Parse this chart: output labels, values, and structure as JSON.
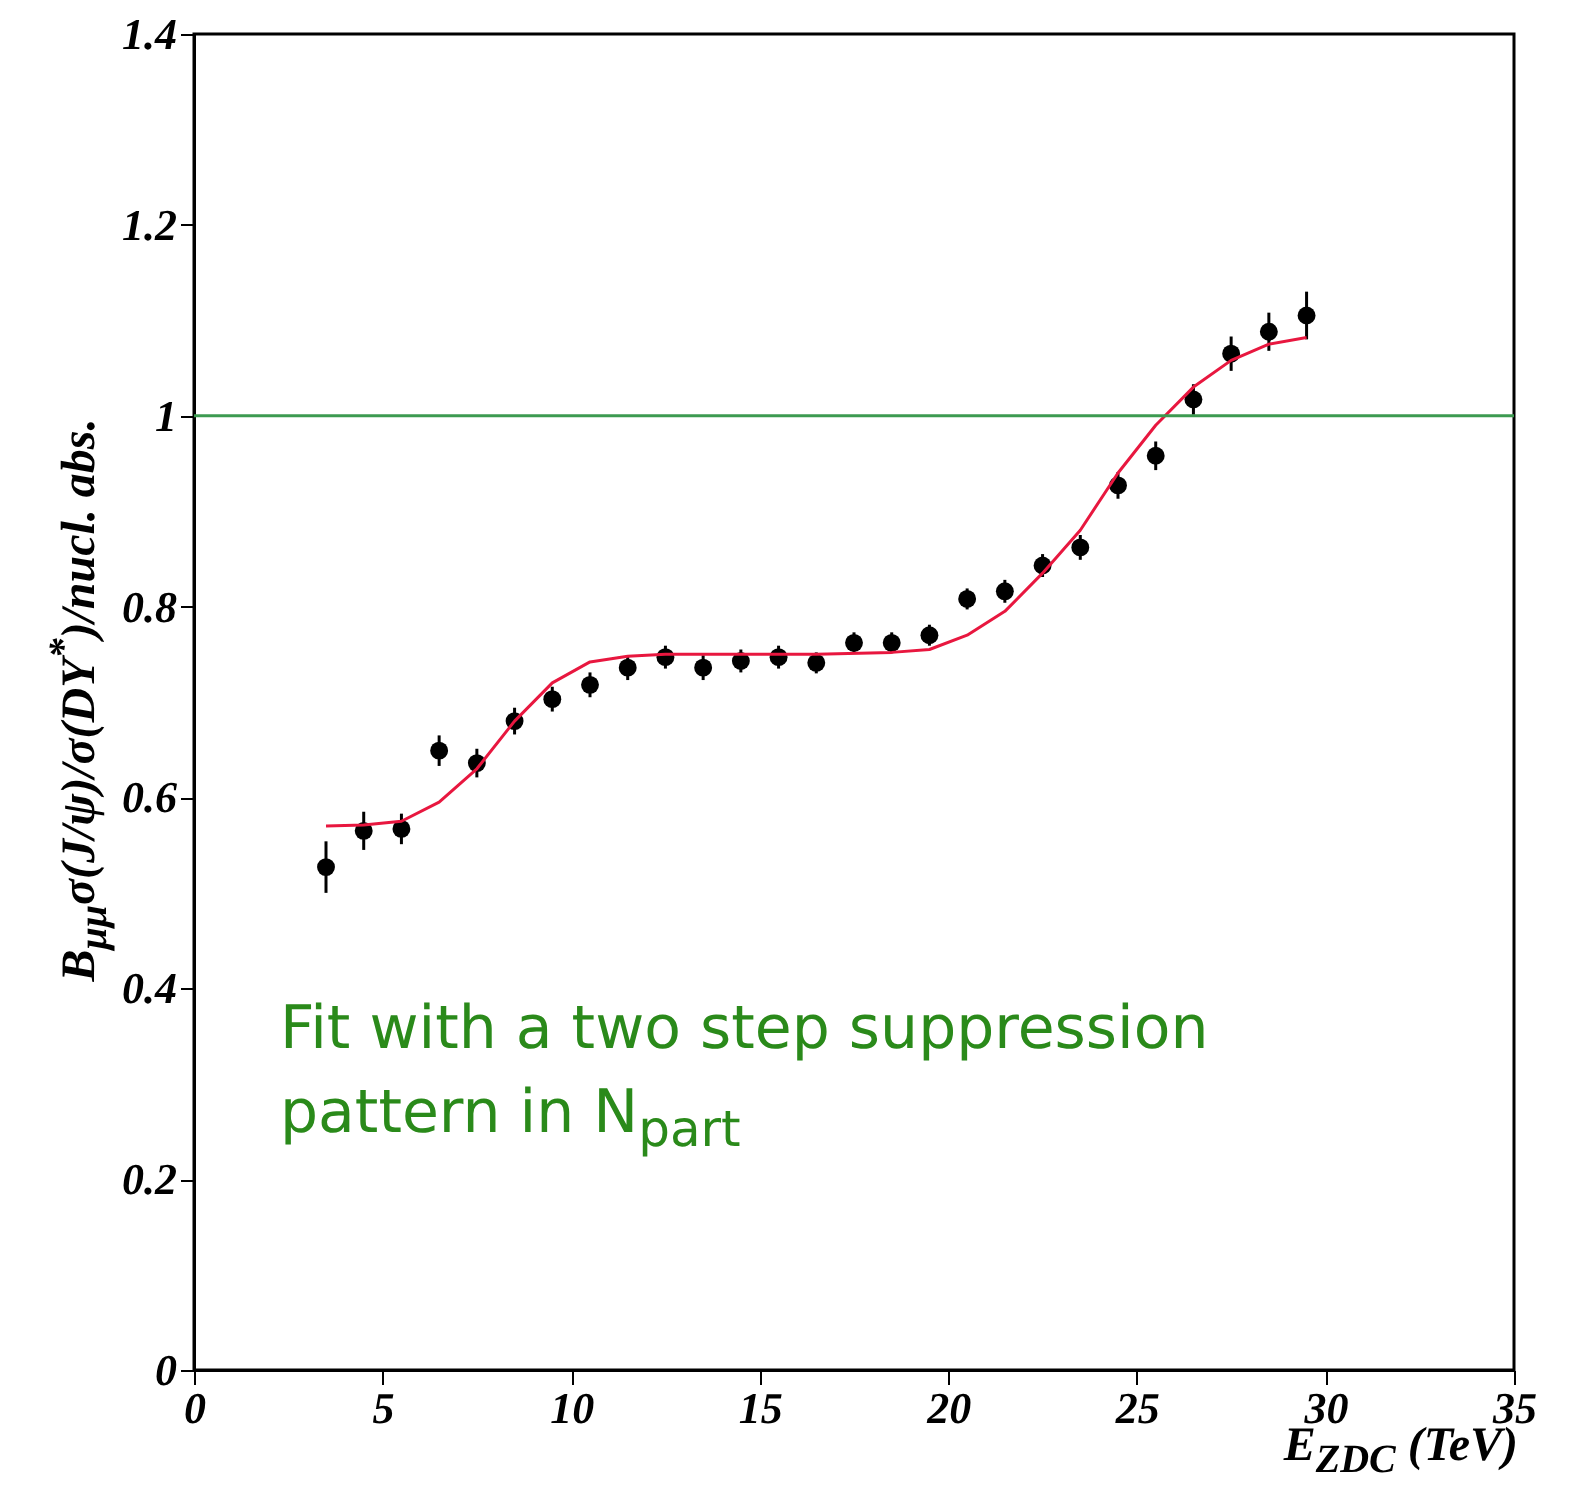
{
  "chart_data": {
    "type": "scatter",
    "xlabel": "E$_{ZDC}$ (TeV)",
    "ylabel": "B$_{μμ}$σ(J/ψ)/σ(DY$^{*}$)/nucl. abs.",
    "xlim": [
      0,
      35
    ],
    "ylim": [
      0,
      1.4
    ],
    "xticks": [
      0,
      5,
      10,
      15,
      20,
      25,
      30,
      35
    ],
    "yticks": [
      0,
      0.2,
      0.4,
      0.6,
      0.8,
      1,
      1.2,
      1.4
    ],
    "grid": false,
    "series": [
      {
        "type": "scatter",
        "marker": "circle",
        "color": "#000000",
        "x": [
          3.5,
          4.5,
          5.5,
          6.5,
          7.5,
          8.5,
          9.5,
          10.5,
          11.5,
          12.5,
          13.5,
          14.5,
          15.5,
          16.5,
          17.5,
          18.5,
          19.5,
          20.5,
          21.5,
          22.5,
          23.5,
          24.5,
          25.5,
          26.5,
          27.5,
          28.5,
          29.5
        ],
        "values": [
          0.527,
          0.565,
          0.567,
          0.649,
          0.636,
          0.68,
          0.703,
          0.718,
          0.736,
          0.747,
          0.736,
          0.743,
          0.747,
          0.741,
          0.762,
          0.762,
          0.77,
          0.808,
          0.816,
          0.843,
          0.862,
          0.927,
          0.958,
          1.017,
          1.065,
          1.088,
          1.105
        ],
        "errors": [
          0.027,
          0.02,
          0.016,
          0.016,
          0.015,
          0.014,
          0.013,
          0.013,
          0.013,
          0.012,
          0.013,
          0.012,
          0.012,
          0.011,
          0.011,
          0.011,
          0.011,
          0.011,
          0.012,
          0.012,
          0.013,
          0.014,
          0.015,
          0.016,
          0.018,
          0.02,
          0.025
        ]
      },
      {
        "type": "line",
        "color": "#e8173f",
        "x": [
          3.5,
          4.5,
          5.5,
          6.5,
          7.5,
          8.5,
          9.5,
          10.5,
          11.5,
          12.5,
          14.5,
          16.5,
          18.5,
          19.5,
          20.5,
          21.5,
          22.5,
          23.5,
          24.5,
          25.5,
          26.5,
          27.5,
          28.5,
          29.5
        ],
        "values": [
          0.57,
          0.571,
          0.575,
          0.595,
          0.63,
          0.68,
          0.72,
          0.742,
          0.748,
          0.75,
          0.75,
          0.75,
          0.752,
          0.755,
          0.77,
          0.795,
          0.835,
          0.88,
          0.94,
          0.99,
          1.03,
          1.058,
          1.075,
          1.082
        ]
      }
    ],
    "ref_lines": [
      {
        "axis": "y",
        "value": 1,
        "color": "#3c9a50"
      }
    ],
    "annotations": [
      "Fit with a two step suppression pattern in N$_{part}$"
    ]
  }
}
